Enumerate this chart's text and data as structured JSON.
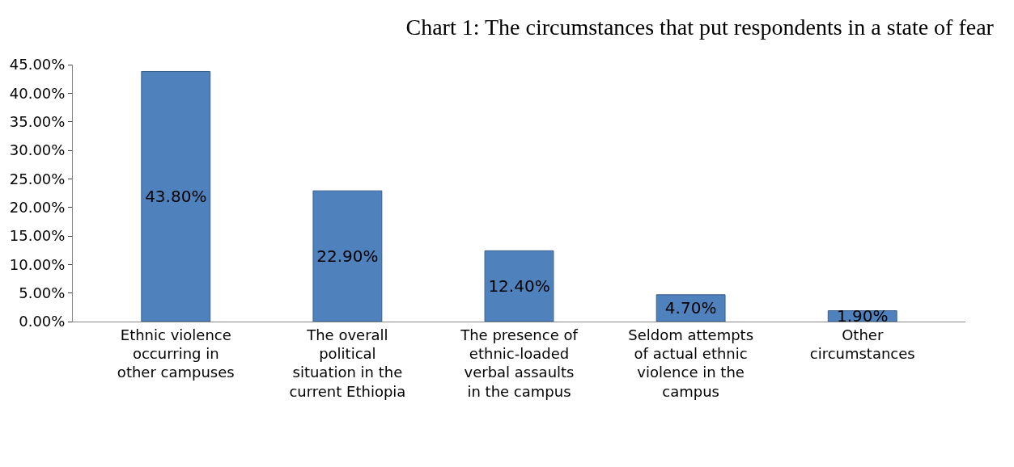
{
  "chart_data": {
    "type": "bar",
    "title": "Chart 1: The circumstances that put respondents in a state of fear",
    "categories": [
      "Ethnic violence occurring in other campuses",
      "The overall political situation in the current Ethiopia",
      "The presence of ethnic-loaded verbal assaults in the campus",
      "Seldom attempts of actual ethnic violence in the campus",
      "Other circumstances"
    ],
    "values": [
      43.8,
      22.9,
      12.4,
      4.7,
      1.9
    ],
    "value_labels": [
      "43.80%",
      "22.90%",
      "12.40%",
      "4.70%",
      "1.90%"
    ],
    "color": "#4f81bd",
    "ylim": [
      0,
      45
    ],
    "yticks": [
      {
        "value": 0,
        "label": "0.00%"
      },
      {
        "value": 5,
        "label": "5.00%"
      },
      {
        "value": 10,
        "label": "10.00%"
      },
      {
        "value": 15,
        "label": "15.00%"
      },
      {
        "value": 20,
        "label": "20.00%"
      },
      {
        "value": 25,
        "label": "25.00%"
      },
      {
        "value": 30,
        "label": "30.00%"
      },
      {
        "value": 35,
        "label": "35.00%"
      },
      {
        "value": 40,
        "label": "40.00%"
      },
      {
        "value": 45,
        "label": "45.00%"
      }
    ],
    "legend": false
  }
}
